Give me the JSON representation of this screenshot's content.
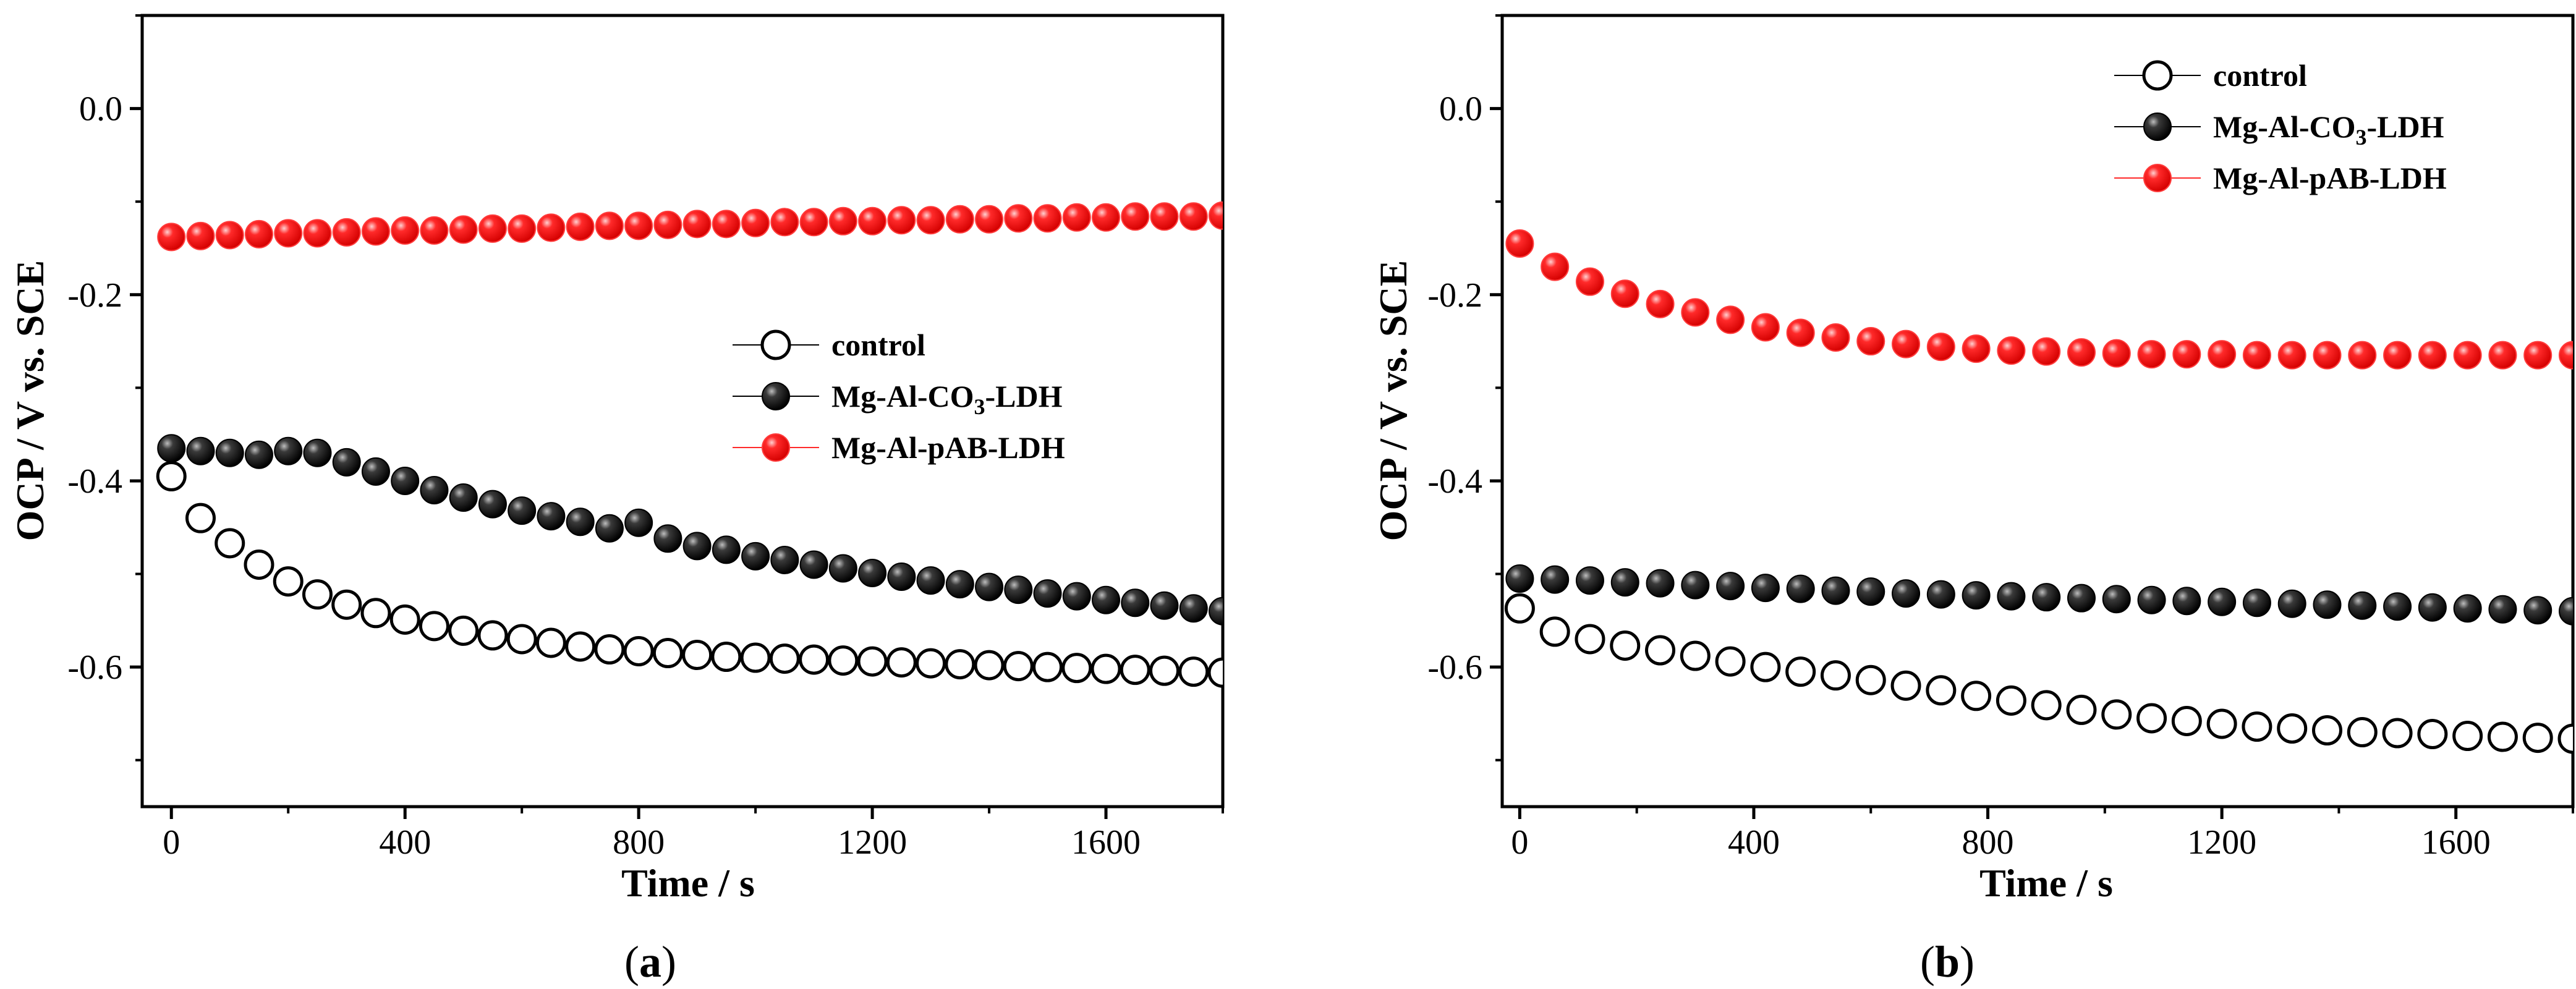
{
  "figure": {
    "panels": [
      "(a)",
      "(b)"
    ]
  },
  "chart_data": [
    {
      "type": "scatter",
      "panel_label": "a",
      "xlabel": "Time / s",
      "ylabel": "OCP / V vs. SCE",
      "xlim": [
        -50,
        1800
      ],
      "ylim": [
        -0.75,
        0.1
      ],
      "xticks": [
        0,
        400,
        800,
        1200,
        1600
      ],
      "xtick_labels": [
        "0",
        "400",
        "800",
        "1200",
        "1600"
      ],
      "yticks": [
        0.0,
        -0.2,
        -0.4,
        -0.6
      ],
      "ytick_labels": [
        "0.0",
        "-0.2",
        "-0.4",
        "-0.6"
      ],
      "legend_position": "center-right",
      "x": [
        0,
        50,
        100,
        150,
        200,
        250,
        300,
        350,
        400,
        450,
        500,
        550,
        600,
        650,
        700,
        750,
        800,
        850,
        900,
        950,
        1000,
        1050,
        1100,
        1150,
        1200,
        1250,
        1300,
        1350,
        1400,
        1450,
        1500,
        1550,
        1600,
        1650,
        1700,
        1750,
        1800
      ],
      "series": [
        {
          "name": "control",
          "name_sub": "",
          "name_suffix": "",
          "marker": "open",
          "color": "#000000",
          "values": [
            -0.395,
            -0.44,
            -0.467,
            -0.49,
            -0.508,
            -0.522,
            -0.533,
            -0.542,
            -0.549,
            -0.556,
            -0.561,
            -0.566,
            -0.57,
            -0.574,
            -0.578,
            -0.581,
            -0.583,
            -0.585,
            -0.587,
            -0.589,
            -0.59,
            -0.591,
            -0.592,
            -0.593,
            -0.594,
            -0.595,
            -0.596,
            -0.597,
            -0.598,
            -0.599,
            -0.6,
            -0.601,
            -0.602,
            -0.603,
            -0.604,
            -0.605,
            -0.606
          ]
        },
        {
          "name": "Mg-Al-CO",
          "name_sub": "3",
          "name_suffix": "-LDH",
          "marker": "black",
          "color": "#000000",
          "values": [
            -0.365,
            -0.368,
            -0.37,
            -0.372,
            -0.368,
            -0.37,
            -0.38,
            -0.39,
            -0.4,
            -0.41,
            -0.418,
            -0.425,
            -0.432,
            -0.438,
            -0.444,
            -0.451,
            -0.445,
            -0.462,
            -0.47,
            -0.474,
            -0.481,
            -0.485,
            -0.49,
            -0.494,
            -0.499,
            -0.503,
            -0.507,
            -0.511,
            -0.514,
            -0.517,
            -0.521,
            -0.524,
            -0.528,
            -0.531,
            -0.534,
            -0.537,
            -0.54
          ]
        },
        {
          "name": "Mg-Al-pAB-LDH",
          "name_sub": "",
          "name_suffix": "",
          "marker": "red",
          "color": "#ff0000",
          "values": [
            -0.138,
            -0.137,
            -0.136,
            -0.135,
            -0.134,
            -0.134,
            -0.133,
            -0.132,
            -0.131,
            -0.131,
            -0.13,
            -0.129,
            -0.129,
            -0.128,
            -0.127,
            -0.126,
            -0.126,
            -0.125,
            -0.124,
            -0.124,
            -0.123,
            -0.122,
            -0.122,
            -0.121,
            -0.121,
            -0.12,
            -0.12,
            -0.119,
            -0.119,
            -0.118,
            -0.118,
            -0.117,
            -0.117,
            -0.116,
            -0.116,
            -0.116,
            -0.115
          ]
        }
      ]
    },
    {
      "type": "scatter",
      "panel_label": "b",
      "xlabel": "Time / s",
      "ylabel": "OCP / V vs. SCE",
      "xlim": [
        -30,
        1800
      ],
      "ylim": [
        -0.75,
        0.1
      ],
      "xticks": [
        0,
        400,
        800,
        1200,
        1600
      ],
      "xtick_labels": [
        "0",
        "400",
        "800",
        "1200",
        "1600"
      ],
      "yticks": [
        0.0,
        -0.2,
        -0.4,
        -0.6
      ],
      "ytick_labels": [
        "0.0",
        "-0.2",
        "-0.4",
        "-0.6"
      ],
      "legend_position": "top-right",
      "x": [
        0,
        60,
        120,
        180,
        240,
        300,
        360,
        420,
        480,
        540,
        600,
        660,
        720,
        780,
        840,
        900,
        960,
        1020,
        1080,
        1140,
        1200,
        1260,
        1320,
        1380,
        1440,
        1500,
        1560,
        1620,
        1680,
        1740,
        1800
      ],
      "series": [
        {
          "name": "control",
          "name_sub": "",
          "name_suffix": "",
          "marker": "open",
          "color": "#000000",
          "values": [
            -0.537,
            -0.562,
            -0.57,
            -0.577,
            -0.582,
            -0.588,
            -0.594,
            -0.6,
            -0.605,
            -0.609,
            -0.614,
            -0.62,
            -0.625,
            -0.631,
            -0.636,
            -0.641,
            -0.646,
            -0.651,
            -0.655,
            -0.658,
            -0.661,
            -0.664,
            -0.666,
            -0.668,
            -0.67,
            -0.671,
            -0.672,
            -0.674,
            -0.675,
            -0.676,
            -0.677
          ]
        },
        {
          "name": "Mg-Al-CO",
          "name_sub": "3",
          "name_suffix": "-LDH",
          "marker": "black",
          "color": "#000000",
          "values": [
            -0.505,
            -0.506,
            -0.507,
            -0.509,
            -0.51,
            -0.512,
            -0.513,
            -0.515,
            -0.516,
            -0.518,
            -0.519,
            -0.521,
            -0.522,
            -0.523,
            -0.524,
            -0.525,
            -0.526,
            -0.527,
            -0.528,
            -0.529,
            -0.53,
            -0.531,
            -0.532,
            -0.533,
            -0.534,
            -0.535,
            -0.536,
            -0.537,
            -0.538,
            -0.539,
            -0.54
          ]
        },
        {
          "name": "Mg-Al-pAB-LDH",
          "name_sub": "",
          "name_suffix": "",
          "marker": "red",
          "color": "#ff0000",
          "values": [
            -0.145,
            -0.17,
            -0.186,
            -0.199,
            -0.21,
            -0.219,
            -0.227,
            -0.235,
            -0.241,
            -0.246,
            -0.25,
            -0.253,
            -0.256,
            -0.258,
            -0.26,
            -0.261,
            -0.262,
            -0.263,
            -0.264,
            -0.264,
            -0.264,
            -0.265,
            -0.265,
            -0.265,
            -0.265,
            -0.265,
            -0.265,
            -0.265,
            -0.265,
            -0.265,
            -0.265
          ]
        }
      ]
    }
  ]
}
